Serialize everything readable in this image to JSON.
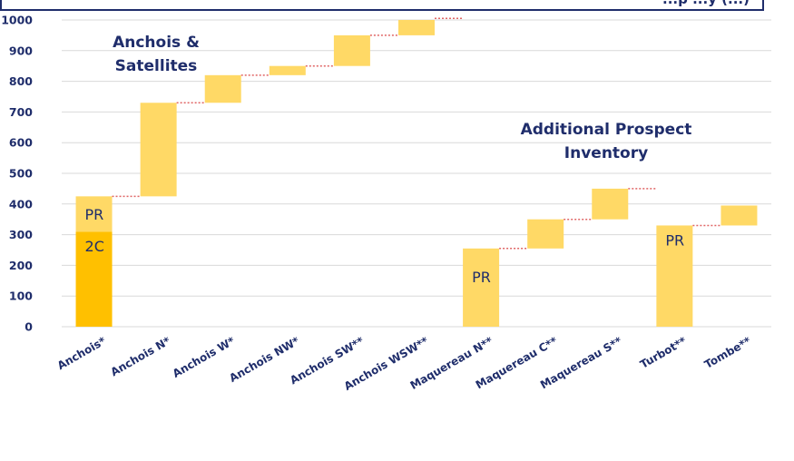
{
  "chart_data": {
    "type": "bar",
    "title": "",
    "xlabel": "",
    "ylabel": "",
    "ylim": [
      0,
      1000
    ],
    "yticks": [
      0,
      100,
      200,
      300,
      400,
      500,
      600,
      700,
      800,
      900,
      1000
    ],
    "grid": true,
    "categories": [
      "Anchois*",
      "Anchois N*",
      "Anchois W*",
      "Anchois NW*",
      "Anchois SW**",
      "Anchois WSW**",
      "Maquereau N**",
      "Maquereau C**",
      "Maquereau S**",
      "Turbot**",
      "Tombe**"
    ],
    "series": [
      {
        "name": "2C",
        "values": [
          310,
          null,
          null,
          null,
          null,
          null,
          null,
          null,
          null,
          null,
          null
        ],
        "base": [
          0,
          null,
          null,
          null,
          null,
          null,
          null,
          null,
          null,
          null,
          null
        ],
        "color": "#ffc000"
      },
      {
        "name": "PR",
        "values": [
          115,
          305,
          90,
          30,
          100,
          55,
          255,
          95,
          100,
          330,
          65
        ],
        "base": [
          310,
          425,
          730,
          820,
          850,
          950,
          0,
          255,
          350,
          0,
          330
        ],
        "color": "#ffd966"
      }
    ],
    "bar_labels": [
      {
        "category": "Anchois*",
        "text": "PR"
      },
      {
        "category": "Anchois*",
        "text": "2C"
      },
      {
        "category": "Maquereau N**",
        "text": "PR"
      },
      {
        "category": "Turbot**",
        "text": "PR"
      }
    ],
    "annotations": [
      {
        "lines": [
          "Anchois &",
          "Satellites"
        ]
      },
      {
        "lines": [
          "Additional Prospect",
          "Inventory"
        ]
      }
    ],
    "connector_color": "#e06666"
  },
  "title_text": "...p    ...y   (...)"
}
